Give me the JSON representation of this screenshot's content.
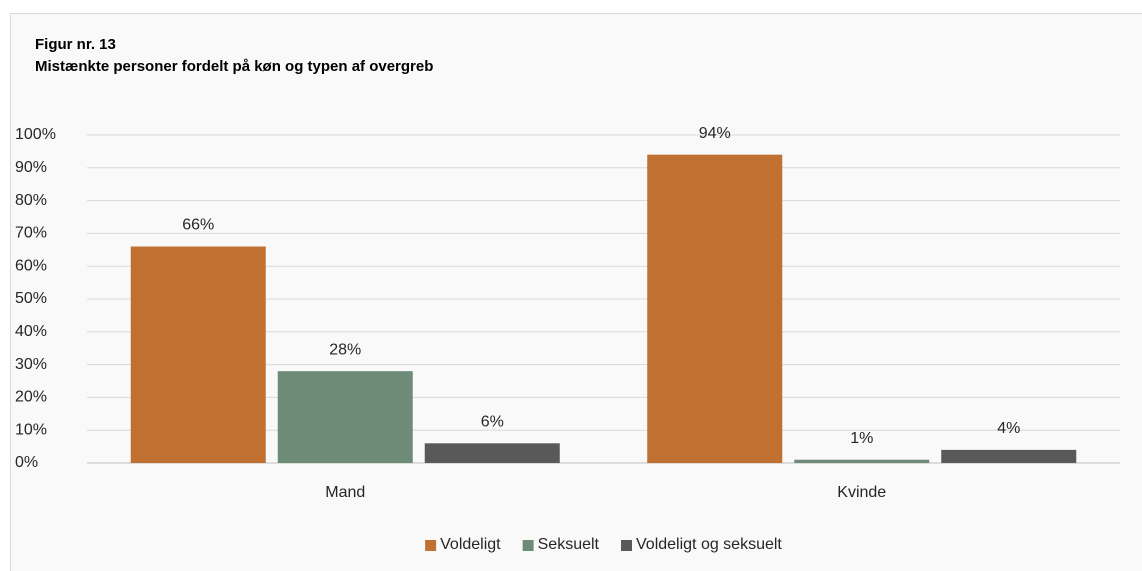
{
  "chart_data": {
    "type": "bar",
    "title": "Figur nr. 13",
    "subtitle": "Mistænkte personer fordelt på køn og typen af overgreb",
    "categories": [
      "Mand",
      "Kvinde"
    ],
    "series": [
      {
        "name": "Voldeligt",
        "color": "#c07030",
        "values": [
          66,
          94
        ],
        "value_labels": [
          "66%",
          "94%"
        ]
      },
      {
        "name": "Seksuelt",
        "color": "#6e8b78",
        "values": [
          28,
          1
        ],
        "value_labels": [
          "28%",
          "1%"
        ]
      },
      {
        "name": "Voldeligt og seksuelt",
        "color": "#595959",
        "values": [
          6,
          4
        ],
        "value_labels": [
          "6%",
          "4%"
        ]
      }
    ],
    "ylim": [
      0,
      100
    ],
    "yticks": [
      {
        "value": 0,
        "label": "0%"
      },
      {
        "value": 10,
        "label": "10%"
      },
      {
        "value": 20,
        "label": "20%"
      },
      {
        "value": 30,
        "label": "30%"
      },
      {
        "value": 40,
        "label": "40%"
      },
      {
        "value": 50,
        "label": "50%"
      },
      {
        "value": 60,
        "label": "60%"
      },
      {
        "value": 70,
        "label": "70%"
      },
      {
        "value": 80,
        "label": "80%"
      },
      {
        "value": 90,
        "label": "90%"
      },
      {
        "value": 100,
        "label": "100%"
      }
    ],
    "grid": true,
    "legend": "bottom"
  }
}
